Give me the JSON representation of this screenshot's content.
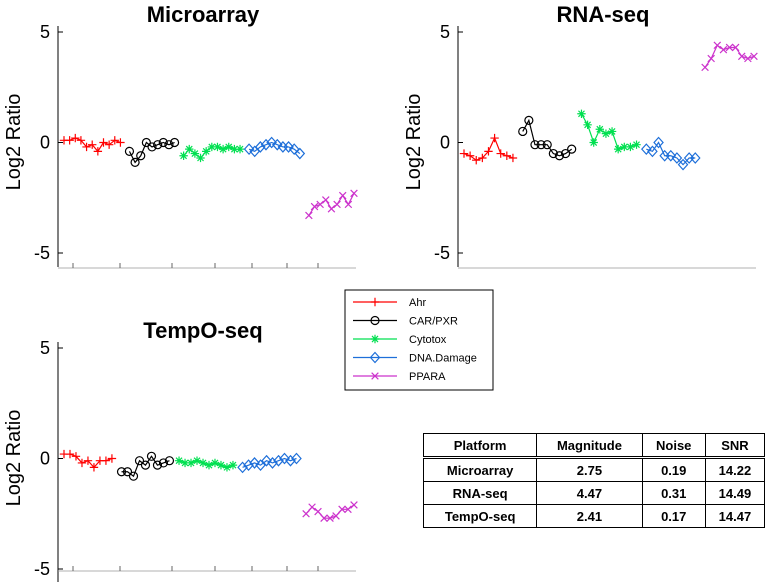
{
  "chart_data": {
    "type": "line",
    "ylabel": "Log2 Ratio",
    "ylim": [
      -5,
      5
    ],
    "yticks": [
      5,
      0,
      -5
    ],
    "series_styles": [
      {
        "name": "Ahr",
        "color": "#ff0000",
        "marker": "plus"
      },
      {
        "name": "CAR/PXR",
        "color": "#000000",
        "marker": "circle"
      },
      {
        "name": "Cytotox",
        "color": "#00e050",
        "marker": "asterisk"
      },
      {
        "name": "DNA.Damage",
        "color": "#1e6fd9",
        "marker": "diamond"
      },
      {
        "name": "PPARA",
        "color": "#cc33cc",
        "marker": "x"
      }
    ],
    "panels": [
      {
        "title": "Microarray",
        "series": [
          {
            "name": "Ahr",
            "values": [
              0.1,
              0.1,
              0.2,
              0.1,
              -0.2,
              -0.1,
              -0.4,
              0.0,
              -0.1,
              0.1,
              0.0
            ]
          },
          {
            "name": "CAR/PXR",
            "values": [
              -0.4,
              -0.9,
              -0.6,
              0.0,
              -0.2,
              -0.1,
              0.0,
              -0.1,
              0.0
            ]
          },
          {
            "name": "Cytotox",
            "values": [
              -0.6,
              -0.3,
              -0.5,
              -0.7,
              -0.4,
              -0.2,
              -0.2,
              -0.3,
              -0.2,
              -0.3,
              -0.3
            ]
          },
          {
            "name": "DNA.Damage",
            "values": [
              -0.3,
              -0.4,
              -0.2,
              -0.1,
              0.0,
              -0.1,
              -0.2,
              -0.2,
              -0.3,
              -0.5
            ]
          },
          {
            "name": "PPARA",
            "values": [
              -3.3,
              -2.9,
              -2.8,
              -2.6,
              -3.0,
              -2.8,
              -2.4,
              -2.8,
              -2.3
            ]
          }
        ]
      },
      {
        "title": "RNA-seq",
        "series": [
          {
            "name": "Ahr",
            "values": [
              -0.5,
              -0.6,
              -0.8,
              -0.7,
              -0.4,
              0.2,
              -0.5,
              -0.6,
              -0.7
            ]
          },
          {
            "name": "CAR/PXR",
            "values": [
              0.5,
              1.0,
              -0.1,
              -0.1,
              -0.1,
              -0.5,
              -0.6,
              -0.5,
              -0.3
            ]
          },
          {
            "name": "Cytotox",
            "values": [
              1.3,
              0.8,
              0.0,
              0.6,
              0.4,
              0.5,
              -0.3,
              -0.2,
              -0.2,
              -0.1
            ]
          },
          {
            "name": "DNA.Damage",
            "values": [
              -0.3,
              -0.4,
              0.0,
              -0.6,
              -0.6,
              -0.7,
              -1.0,
              -0.7,
              -0.7
            ]
          },
          {
            "name": "PPARA",
            "values": [
              3.4,
              3.8,
              4.4,
              4.2,
              4.3,
              4.3,
              3.9,
              3.8,
              3.9
            ]
          }
        ]
      },
      {
        "title": "TempO-seq",
        "series": [
          {
            "name": "Ahr",
            "values": [
              0.2,
              0.2,
              0.1,
              -0.2,
              -0.1,
              -0.4,
              -0.1,
              -0.1,
              0.0
            ]
          },
          {
            "name": "CAR/PXR",
            "values": [
              -0.6,
              -0.6,
              -0.8,
              -0.1,
              -0.3,
              0.1,
              -0.3,
              -0.2,
              -0.1
            ]
          },
          {
            "name": "Cytotox",
            "values": [
              -0.1,
              -0.2,
              -0.2,
              -0.1,
              -0.2,
              -0.3,
              -0.2,
              -0.3,
              -0.4,
              -0.3
            ]
          },
          {
            "name": "DNA.Damage",
            "values": [
              -0.4,
              -0.3,
              -0.2,
              -0.3,
              -0.1,
              -0.2,
              -0.1,
              0.0,
              -0.1,
              0.0
            ]
          },
          {
            "name": "PPARA",
            "values": [
              -2.5,
              -2.2,
              -2.4,
              -2.7,
              -2.7,
              -2.6,
              -2.3,
              -2.3,
              -2.1
            ]
          }
        ]
      }
    ],
    "legend": [
      "Ahr",
      "CAR/PXR",
      "Cytotox",
      "DNA.Damage",
      "PPARA"
    ]
  },
  "stats_table": {
    "headers": [
      "Platform",
      "Magnitude",
      "Noise",
      "SNR"
    ],
    "rows": [
      [
        "Microarray",
        "2.75",
        "0.19",
        "14.22"
      ],
      [
        "RNA-seq",
        "4.47",
        "0.31",
        "14.49"
      ],
      [
        "TempO-seq",
        "2.41",
        "0.17",
        "14.47"
      ]
    ]
  }
}
